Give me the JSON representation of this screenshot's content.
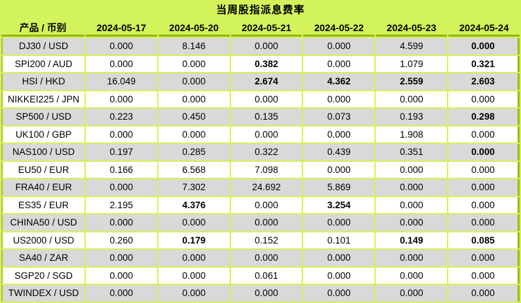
{
  "title": "当周股指派息费率",
  "colors": {
    "background_green": "#d3f35a",
    "grid_line": "#d3f35a",
    "header_underline": "#94b60e",
    "row_gray": "#d9d9d9",
    "row_white": "#ffffff",
    "text": "#000000"
  },
  "chart_data": {
    "type": "table",
    "title": "当周股指派息费率",
    "corner_header": "产品 / 币别",
    "date_headers": [
      "2024-05-17",
      "2024-05-20",
      "2024-05-21",
      "2024-05-22",
      "2024-05-23",
      "2024-05-24"
    ],
    "rows": [
      {
        "label": "DJ30 / USD",
        "values": [
          "0.000",
          "8.146",
          "0.000",
          "0.000",
          "4.599",
          "0.000"
        ],
        "bold": [
          5
        ]
      },
      {
        "label": "SPI200 / AUD",
        "values": [
          "0.000",
          "0.000",
          "0.382",
          "0.000",
          "1.079",
          "0.321"
        ],
        "bold": [
          2,
          5
        ]
      },
      {
        "label": "HSI / HKD",
        "values": [
          "16.049",
          "0.000",
          "2.674",
          "4.362",
          "2.559",
          "2.603"
        ],
        "bold": [
          2,
          3,
          4,
          5
        ]
      },
      {
        "label": "NIKKEI225 / JPN",
        "values": [
          "0.000",
          "0.000",
          "0.000",
          "0.000",
          "0.000",
          "0.000"
        ],
        "bold": []
      },
      {
        "label": "SP500 / USD",
        "values": [
          "0.223",
          "0.450",
          "0.135",
          "0.073",
          "0.193",
          "0.298"
        ],
        "bold": [
          5
        ]
      },
      {
        "label": "UK100 / GBP",
        "values": [
          "0.000",
          "0.000",
          "0.000",
          "0.000",
          "1.908",
          "0.000"
        ],
        "bold": []
      },
      {
        "label": "NAS100 / USD",
        "values": [
          "0.197",
          "0.285",
          "0.322",
          "0.439",
          "0.351",
          "0.000"
        ],
        "bold": [
          5
        ]
      },
      {
        "label": "EU50 / EUR",
        "values": [
          "0.166",
          "6.568",
          "7.098",
          "0.000",
          "0.000",
          "0.000"
        ],
        "bold": []
      },
      {
        "label": "FRA40 / EUR",
        "values": [
          "0.000",
          "7.302",
          "24.692",
          "5.869",
          "0.000",
          "0.000"
        ],
        "bold": []
      },
      {
        "label": "ES35 / EUR",
        "values": [
          "2.195",
          "4.376",
          "0.000",
          "3.254",
          "0.000",
          "0.000"
        ],
        "bold": [
          1,
          3
        ]
      },
      {
        "label": "CHINA50 / USD",
        "values": [
          "0.000",
          "0.000",
          "0.000",
          "0.000",
          "0.000",
          "0.000"
        ],
        "bold": []
      },
      {
        "label": "US2000 / USD",
        "values": [
          "0.260",
          "0.179",
          "0.152",
          "0.101",
          "0.149",
          "0.085"
        ],
        "bold": [
          1,
          4,
          5
        ]
      },
      {
        "label": "SA40 / ZAR",
        "values": [
          "0.000",
          "0.000",
          "0.000",
          "0.000",
          "0.000",
          "0.000"
        ],
        "bold": []
      },
      {
        "label": "SGP20 / SGD",
        "values": [
          "0.000",
          "0.000",
          "0.061",
          "0.000",
          "0.000",
          "0.000"
        ],
        "bold": []
      },
      {
        "label": "TWINDEX / USD",
        "values": [
          "0.000",
          "0.000",
          "0.000",
          "0.000",
          "0.000",
          "0.000"
        ],
        "bold": []
      }
    ]
  }
}
